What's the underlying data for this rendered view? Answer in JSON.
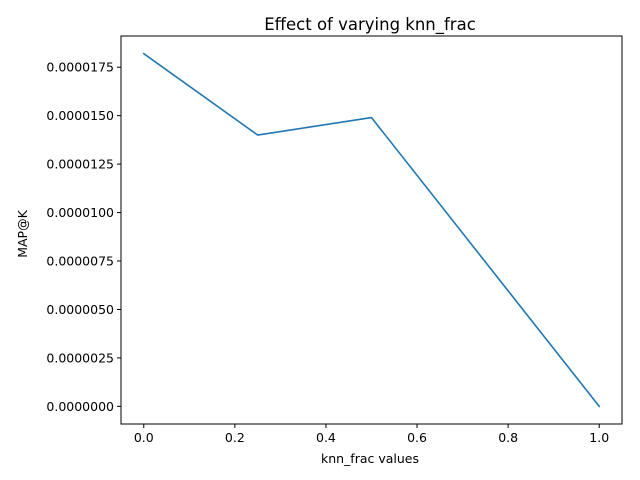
{
  "chart_data": {
    "type": "line",
    "title": "Effect of varying knn_frac",
    "xlabel": "knn_frac values",
    "ylabel": "MAP@K",
    "xlim": [
      -0.05,
      1.05
    ],
    "ylim": [
      -9.1e-07,
      1.911e-05
    ],
    "grid": false,
    "legend": "none",
    "x_ticks": [
      0.0,
      0.2,
      0.4,
      0.6,
      0.8,
      1.0
    ],
    "x_tick_labels": [
      "0.0",
      "0.2",
      "0.4",
      "0.6",
      "0.8",
      "1.0"
    ],
    "y_ticks": [
      0,
      2.5e-06,
      5e-06,
      7.5e-06,
      1e-05,
      1.25e-05,
      1.5e-05,
      1.75e-05
    ],
    "y_tick_labels": [
      "0.0000000",
      "0.0000025",
      "0.0000050",
      "0.0000075",
      "0.0000100",
      "0.0000125",
      "0.0000150",
      "0.0000175"
    ],
    "series": [
      {
        "color": "#1f77b4",
        "x": [
          0.0,
          0.25,
          0.5,
          1.0
        ],
        "y": [
          1.82e-05,
          1.4e-05,
          1.49e-05,
          0.0
        ]
      }
    ]
  }
}
